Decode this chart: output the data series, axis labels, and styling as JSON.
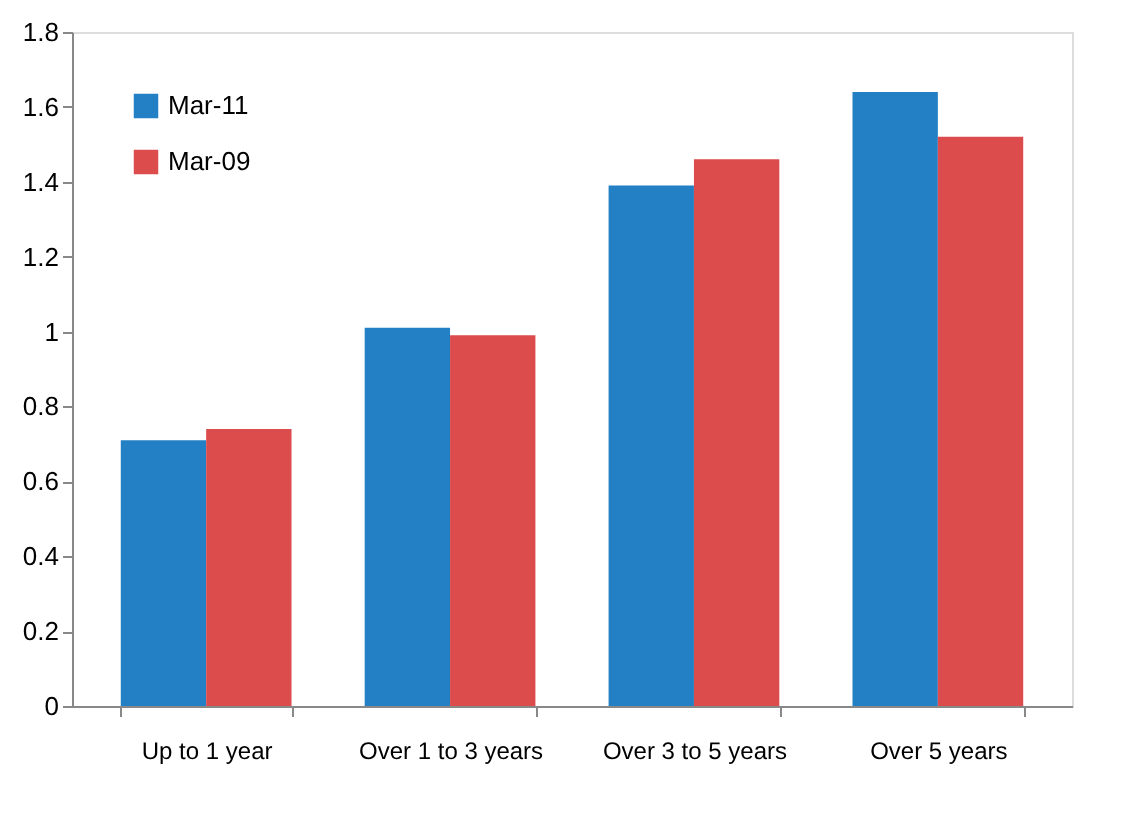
{
  "chart_data": {
    "type": "bar",
    "categories": [
      "Up to 1 year",
      "Over 1 to 3 years",
      "Over 3 to 5 years",
      "Over 5 years"
    ],
    "series": [
      {
        "name": "Mar-11",
        "color": "#2380c4",
        "values": [
          0.71,
          1.01,
          1.39,
          1.64
        ]
      },
      {
        "name": "Mar-09",
        "color": "#dc4c4c",
        "values": [
          0.74,
          0.99,
          1.46,
          1.52
        ]
      }
    ],
    "ylim": [
      0,
      1.8
    ],
    "yticks": [
      0,
      0.2,
      0.4,
      0.6,
      0.8,
      1,
      1.2,
      1.4,
      1.6,
      1.8
    ],
    "grid": false,
    "legend": "top left"
  }
}
